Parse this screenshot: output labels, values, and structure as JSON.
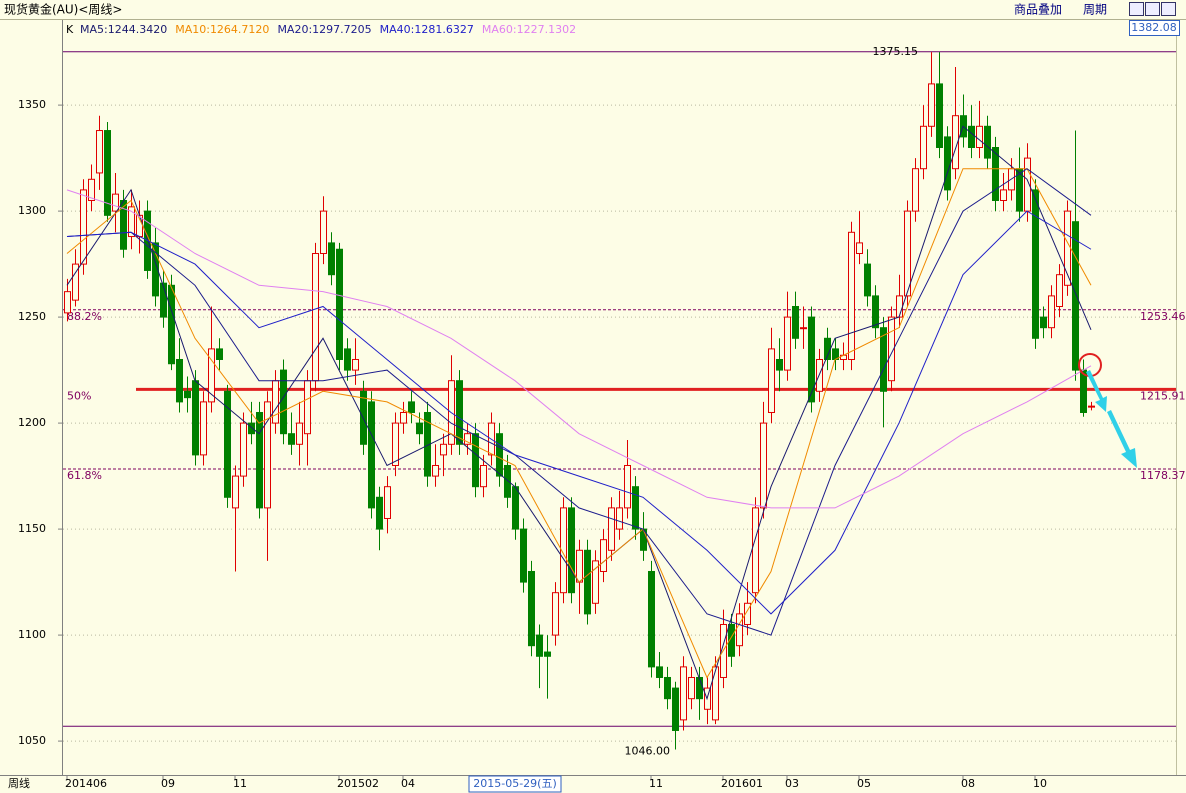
{
  "header": {
    "title": "现货黄金(AU)<周线>",
    "buttons": [
      "商品叠加",
      "周期"
    ],
    "period_label": "周线",
    "cursor_price": 1382.08
  },
  "chart_data": {
    "type": "candlestick",
    "indicator_label": "K",
    "ylim": [
      1034.0,
      1389.2
    ],
    "yticks": [
      1050,
      1100,
      1150,
      1200,
      1250,
      1300,
      1350
    ],
    "grid": true,
    "up_color": "#e00000",
    "down_color": "#008000",
    "xticks": [
      {
        "value": 0,
        "label": "201406"
      },
      {
        "value": 12,
        "label": "09"
      },
      {
        "value": 21,
        "label": "11"
      },
      {
        "value": 34,
        "label": "201502"
      },
      {
        "value": 42,
        "label": "04"
      },
      {
        "value": 73,
        "label": "11"
      },
      {
        "value": 82,
        "label": "201601"
      },
      {
        "value": 90,
        "label": "03"
      },
      {
        "value": 99,
        "label": "05"
      },
      {
        "value": 112,
        "label": "08"
      },
      {
        "value": 121,
        "label": "10"
      }
    ],
    "cursor_date": {
      "value": 56,
      "label": "2015-05-29(五)"
    },
    "candles": [
      [
        1252,
        1268,
        1248,
        1262
      ],
      [
        1258,
        1282,
        1255,
        1275
      ],
      [
        1275,
        1315,
        1270,
        1310
      ],
      [
        1305,
        1322,
        1300,
        1315
      ],
      [
        1318,
        1345,
        1310,
        1338
      ],
      [
        1338,
        1342,
        1295,
        1298
      ],
      [
        1300,
        1318,
        1290,
        1308
      ],
      [
        1305,
        1310,
        1278,
        1282
      ],
      [
        1288,
        1310,
        1282,
        1302
      ],
      [
        1288,
        1305,
        1280,
        1298
      ],
      [
        1300,
        1305,
        1268,
        1272
      ],
      [
        1285,
        1292,
        1255,
        1260
      ],
      [
        1266,
        1272,
        1245,
        1250
      ],
      [
        1265,
        1270,
        1225,
        1228
      ],
      [
        1230,
        1240,
        1205,
        1210
      ],
      [
        1215,
        1222,
        1205,
        1212
      ],
      [
        1220,
        1225,
        1180,
        1185
      ],
      [
        1185,
        1215,
        1180,
        1210
      ],
      [
        1210,
        1255,
        1205,
        1235
      ],
      [
        1235,
        1240,
        1225,
        1230
      ],
      [
        1215,
        1218,
        1160,
        1165
      ],
      [
        1160,
        1180,
        1130,
        1175
      ],
      [
        1175,
        1205,
        1170,
        1200
      ],
      [
        1200,
        1210,
        1190,
        1195
      ],
      [
        1205,
        1210,
        1155,
        1160
      ],
      [
        1160,
        1215,
        1135,
        1210
      ],
      [
        1200,
        1225,
        1195,
        1220
      ],
      [
        1225,
        1230,
        1190,
        1195
      ],
      [
        1195,
        1205,
        1185,
        1190
      ],
      [
        1190,
        1210,
        1180,
        1200
      ],
      [
        1195,
        1225,
        1180,
        1220
      ],
      [
        1220,
        1285,
        1215,
        1280
      ],
      [
        1280,
        1307,
        1275,
        1300
      ],
      [
        1285,
        1290,
        1265,
        1270
      ],
      [
        1282,
        1285,
        1225,
        1230
      ],
      [
        1235,
        1240,
        1220,
        1225
      ],
      [
        1225,
        1240,
        1218,
        1230
      ],
      [
        1215,
        1220,
        1185,
        1190
      ],
      [
        1210,
        1215,
        1155,
        1160
      ],
      [
        1165,
        1170,
        1140,
        1150
      ],
      [
        1155,
        1175,
        1148,
        1170
      ],
      [
        1180,
        1205,
        1175,
        1200
      ],
      [
        1200,
        1210,
        1195,
        1205
      ],
      [
        1210,
        1215,
        1200,
        1205
      ],
      [
        1200,
        1205,
        1190,
        1195
      ],
      [
        1205,
        1210,
        1170,
        1175
      ],
      [
        1175,
        1190,
        1170,
        1180
      ],
      [
        1185,
        1195,
        1175,
        1190
      ],
      [
        1190,
        1232,
        1185,
        1220
      ],
      [
        1220,
        1225,
        1185,
        1190
      ],
      [
        1190,
        1200,
        1185,
        1195
      ],
      [
        1195,
        1200,
        1165,
        1170
      ],
      [
        1170,
        1185,
        1165,
        1180
      ],
      [
        1185,
        1205,
        1180,
        1200
      ],
      [
        1195,
        1200,
        1170,
        1175
      ],
      [
        1180,
        1185,
        1160,
        1165
      ],
      [
        1170,
        1172,
        1145,
        1150
      ],
      [
        1150,
        1155,
        1120,
        1125
      ],
      [
        1130,
        1135,
        1090,
        1095
      ],
      [
        1100,
        1105,
        1075,
        1090
      ],
      [
        1092,
        1100,
        1070,
        1090
      ],
      [
        1100,
        1125,
        1095,
        1120
      ],
      [
        1120,
        1165,
        1115,
        1160
      ],
      [
        1160,
        1165,
        1115,
        1120
      ],
      [
        1125,
        1145,
        1110,
        1140
      ],
      [
        1140,
        1145,
        1105,
        1110
      ],
      [
        1115,
        1140,
        1110,
        1135
      ],
      [
        1130,
        1150,
        1125,
        1145
      ],
      [
        1140,
        1165,
        1135,
        1160
      ],
      [
        1150,
        1168,
        1145,
        1160
      ],
      [
        1160,
        1192,
        1155,
        1180
      ],
      [
        1170,
        1175,
        1145,
        1150
      ],
      [
        1150,
        1158,
        1135,
        1140
      ],
      [
        1130,
        1135,
        1080,
        1085
      ],
      [
        1085,
        1092,
        1075,
        1080
      ],
      [
        1080,
        1085,
        1065,
        1070
      ],
      [
        1075,
        1078,
        1046,
        1055
      ],
      [
        1060,
        1090,
        1055,
        1085
      ],
      [
        1070,
        1085,
        1065,
        1080
      ],
      [
        1080,
        1085,
        1060,
        1070
      ],
      [
        1065,
        1080,
        1058,
        1075
      ],
      [
        1060,
        1090,
        1058,
        1085
      ],
      [
        1080,
        1112,
        1075,
        1105
      ],
      [
        1105,
        1110,
        1085,
        1090
      ],
      [
        1095,
        1115,
        1090,
        1110
      ],
      [
        1105,
        1125,
        1100,
        1115
      ],
      [
        1120,
        1165,
        1115,
        1160
      ],
      [
        1160,
        1210,
        1155,
        1200
      ],
      [
        1205,
        1245,
        1200,
        1235
      ],
      [
        1230,
        1240,
        1215,
        1225
      ],
      [
        1225,
        1262,
        1220,
        1250
      ],
      [
        1255,
        1262,
        1235,
        1240
      ],
      [
        1245,
        1255,
        1235,
        1245
      ],
      [
        1250,
        1255,
        1205,
        1210
      ],
      [
        1215,
        1235,
        1210,
        1230
      ],
      [
        1240,
        1245,
        1225,
        1230
      ],
      [
        1235,
        1240,
        1225,
        1230
      ],
      [
        1230,
        1238,
        1225,
        1232
      ],
      [
        1230,
        1295,
        1225,
        1290
      ],
      [
        1280,
        1300,
        1275,
        1285
      ],
      [
        1275,
        1282,
        1255,
        1260
      ],
      [
        1260,
        1265,
        1240,
        1245
      ],
      [
        1245,
        1250,
        1198,
        1215
      ],
      [
        1220,
        1255,
        1215,
        1250
      ],
      [
        1250,
        1270,
        1245,
        1260
      ],
      [
        1260,
        1305,
        1255,
        1300
      ],
      [
        1300,
        1325,
        1295,
        1320
      ],
      [
        1320,
        1350,
        1315,
        1340
      ],
      [
        1340,
        1375,
        1335,
        1360
      ],
      [
        1360,
        1375,
        1325,
        1330
      ],
      [
        1335,
        1340,
        1305,
        1310
      ],
      [
        1320,
        1368,
        1315,
        1345
      ],
      [
        1345,
        1355,
        1330,
        1335
      ],
      [
        1340,
        1350,
        1325,
        1330
      ],
      [
        1330,
        1352,
        1325,
        1340
      ],
      [
        1340,
        1345,
        1320,
        1325
      ],
      [
        1330,
        1335,
        1300,
        1305
      ],
      [
        1305,
        1318,
        1300,
        1310
      ],
      [
        1310,
        1325,
        1305,
        1320
      ],
      [
        1320,
        1330,
        1295,
        1300
      ],
      [
        1300,
        1332,
        1295,
        1325
      ],
      [
        1310,
        1315,
        1235,
        1240
      ],
      [
        1250,
        1255,
        1240,
        1245
      ],
      [
        1245,
        1265,
        1240,
        1260
      ],
      [
        1255,
        1275,
        1250,
        1270
      ],
      [
        1265,
        1305,
        1260,
        1300
      ],
      [
        1295,
        1338,
        1220,
        1225
      ],
      [
        1225,
        1230,
        1203,
        1205
      ],
      [
        1208,
        1210,
        1206,
        1208
      ]
    ],
    "ma_x": [
      0,
      8,
      16,
      24,
      32,
      40,
      48,
      56,
      64,
      72,
      80,
      88,
      96,
      104,
      112,
      120,
      128
    ],
    "series": [
      {
        "name": "MA5:1244.3420",
        "color": "#1a1a6e",
        "values": [
          1265,
          1310,
          1220,
          1195,
          1240,
          1180,
          1195,
          1170,
          1125,
          1150,
          1070,
          1170,
          1240,
          1250,
          1340,
          1315,
          1244
        ]
      },
      {
        "name": "MA10:1264.7120",
        "color": "#f08a00",
        "values": [
          1280,
          1305,
          1240,
          1200,
          1215,
          1210,
          1195,
          1180,
          1125,
          1150,
          1080,
          1130,
          1230,
          1245,
          1320,
          1320,
          1265
        ]
      },
      {
        "name": "MA20:1297.7205",
        "color": "#1c1c8c",
        "values": [
          1288,
          1290,
          1265,
          1220,
          1220,
          1225,
          1200,
          1185,
          1160,
          1150,
          1110,
          1100,
          1180,
          1240,
          1300,
          1320,
          1298
        ]
      },
      {
        "name": "MA40:1281.6327",
        "color": "#2020c8",
        "values": [
          1288,
          1290,
          1275,
          1245,
          1255,
          1230,
          1205,
          1185,
          1175,
          1165,
          1140,
          1110,
          1140,
          1200,
          1270,
          1300,
          1282
        ]
      },
      {
        "name": "MA60:1227.1302",
        "color": "#e080f0",
        "values": [
          1310,
          1300,
          1280,
          1265,
          1262,
          1255,
          1240,
          1220,
          1195,
          1180,
          1165,
          1160,
          1160,
          1175,
          1195,
          1210,
          1227
        ]
      }
    ],
    "levels": [
      {
        "label": "88.2%",
        "value": 1253.46,
        "color": "#800060"
      },
      {
        "label": "50%",
        "value": 1215.91,
        "color": "#e02020"
      },
      {
        "label": "61.8%",
        "value": 1178.37,
        "color": "#800060"
      }
    ],
    "top_line": 1375.15,
    "bottom_line": 1057,
    "low_annotation": {
      "value": 1046,
      "label": "1046.00"
    }
  }
}
